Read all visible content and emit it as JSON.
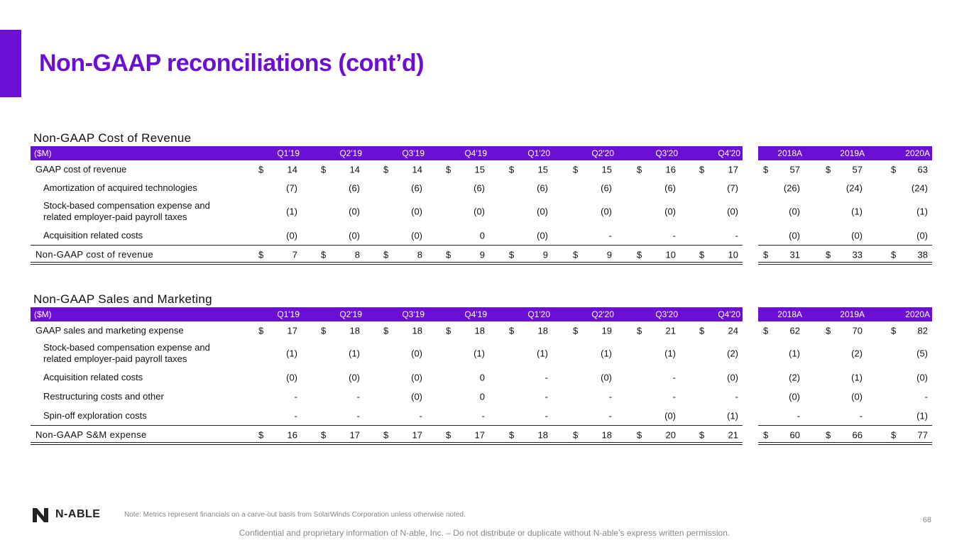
{
  "header": {
    "title": "Non-GAAP reconciliations (cont’d)"
  },
  "tables": [
    {
      "title": "Non-GAAP Cost of Revenue",
      "unit": "($M)",
      "columns": [
        "Q1'19",
        "Q2'19",
        "Q3'19",
        "Q4'19",
        "Q1'20",
        "Q2'20",
        "Q3'20",
        "Q4'20",
        "2018A",
        "2019A",
        "2020A"
      ],
      "gaap": {
        "label": "GAAP cost of revenue",
        "prefix": "$",
        "cells": [
          14,
          14,
          14,
          15,
          15,
          15,
          16,
          17,
          57,
          57,
          63
        ]
      },
      "adjustments": [
        {
          "label": "Amortization of acquired technologies",
          "cells": [
            "(7)",
            "(6)",
            "(6)",
            "(6)",
            "(6)",
            "(6)",
            "(6)",
            "(7)",
            "(26)",
            "(24)",
            "(24)"
          ]
        },
        {
          "label": "Stock-based compensation expense and related employer-paid payroll taxes",
          "cells": [
            "(1)",
            "(0)",
            "(0)",
            "(0)",
            "(0)",
            "(0)",
            "(0)",
            "(0)",
            "(0)",
            "(1)",
            "(1)"
          ]
        },
        {
          "label": "Acquisition related costs",
          "cells": [
            "(0)",
            "(0)",
            "(0)",
            0,
            "(0)",
            "-",
            "-",
            "-",
            "(0)",
            "(0)",
            "(0)"
          ]
        }
      ],
      "total": {
        "label": "Non-GAAP cost of revenue",
        "prefix": "$",
        "cells": [
          7,
          8,
          8,
          9,
          9,
          9,
          10,
          10,
          31,
          33,
          38
        ]
      }
    },
    {
      "title": "Non-GAAP Sales and Marketing",
      "unit": "($M)",
      "columns": [
        "Q1'19",
        "Q2'19",
        "Q3'19",
        "Q4'19",
        "Q1'20",
        "Q2'20",
        "Q3'20",
        "Q4'20",
        "2018A",
        "2019A",
        "2020A"
      ],
      "gaap": {
        "label": "GAAP sales and marketing expense",
        "prefix": "$",
        "cells": [
          17,
          18,
          18,
          18,
          18,
          19,
          21,
          24,
          62,
          70,
          82
        ]
      },
      "adjustments": [
        {
          "label": "Stock-based compensation expense and related employer-paid payroll taxes",
          "cells": [
            "(1)",
            "(1)",
            "(0)",
            "(1)",
            "(1)",
            "(1)",
            "(1)",
            "(2)",
            "(1)",
            "(2)",
            "(5)"
          ]
        },
        {
          "label": "Acquisition related costs",
          "cells": [
            "(0)",
            "(0)",
            "(0)",
            0,
            "-",
            "(0)",
            "-",
            "(0)",
            "(2)",
            "(1)",
            "(0)"
          ]
        },
        {
          "label": "Restructuring costs and other",
          "cells": [
            "-",
            "-",
            "(0)",
            0,
            "-",
            "-",
            "-",
            "-",
            "(0)",
            "(0)",
            "-"
          ]
        },
        {
          "label": "Spin-off exploration costs",
          "cells": [
            "-",
            "-",
            "-",
            "-",
            "-",
            "-",
            "(0)",
            "(1)",
            "-",
            "-",
            "(1)"
          ]
        }
      ],
      "total": {
        "label": "Non-GAAP S&M expense",
        "prefix": "$",
        "cells": [
          16,
          17,
          17,
          17,
          18,
          18,
          20,
          21,
          60,
          66,
          77
        ]
      }
    }
  ],
  "footer": {
    "logo": "N-ABLE",
    "note": "Note: Metrics represent financials on a carve-out basis from SolarWinds Corporation unless otherwise noted.",
    "page": "68",
    "confidential": "Confidential and proprietary information of N-able, Inc. – Do not distribute or duplicate without N-able’s express written permission."
  }
}
